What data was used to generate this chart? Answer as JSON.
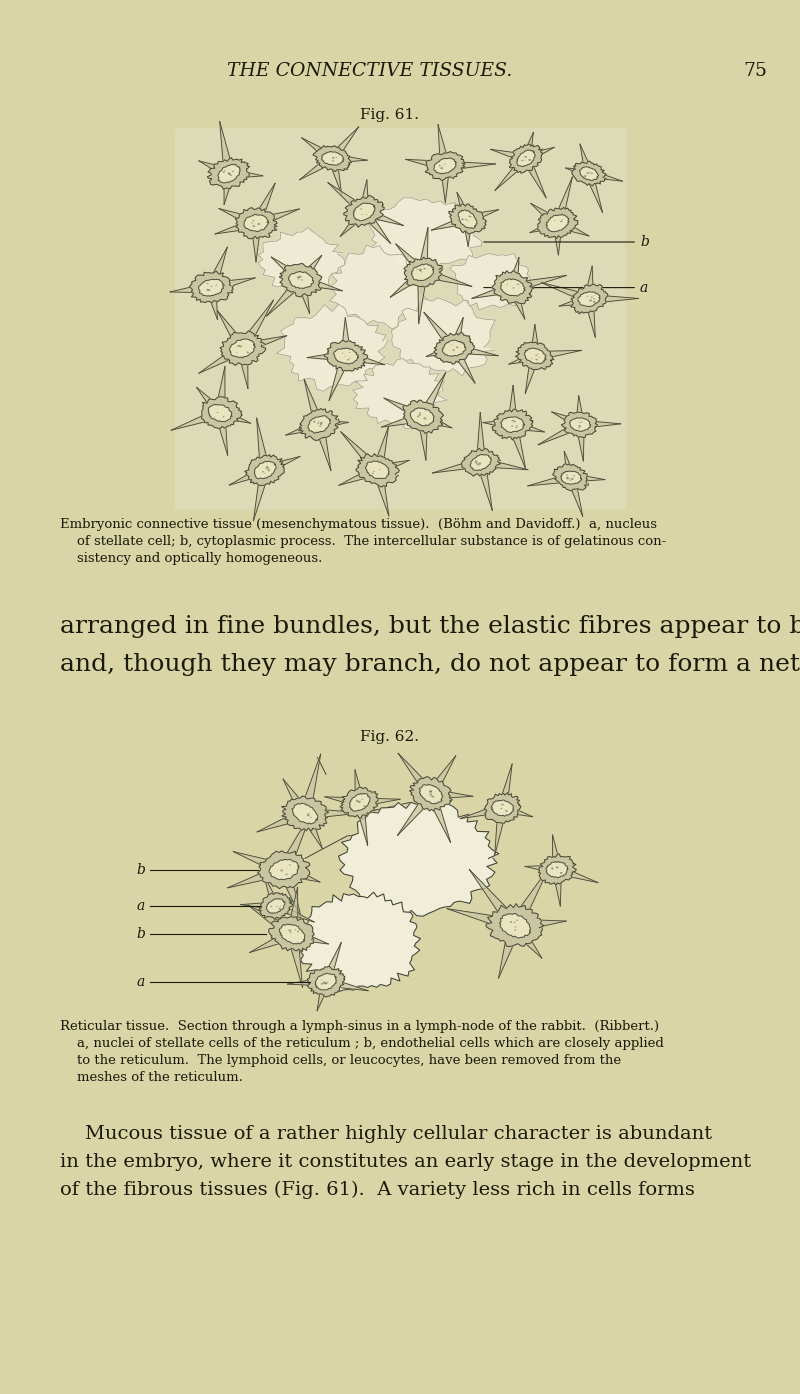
{
  "bg_color": "#d9d5a7",
  "header_text": "THE CONNECTIVE TISSUES.",
  "header_page": "75",
  "fig61_label": "Fig. 61.",
  "fig61_caption_line1": "Embryonic connective tissue (mesenchymatous tissue).  (Böhm and Davidoff.)  a, nucleus",
  "fig61_caption_line2": "    of stellate cell; b, cytoplasmic process.  The intercellular substance is of gelatinous con-",
  "fig61_caption_line3": "    sistency and optically homogeneous.",
  "large_text_line1": "arranged in fine bundles, but the elastic fibres appear to be  isolated,",
  "large_text_line2": "and, though they may branch, do not appear to form a network.",
  "fig62_label": "Fig. 62.",
  "fig62_caption_line1": "Reticular tissue.  Section through a lymph-sinus in a lymph-node of the rabbit.  (Ribbert.)",
  "fig62_caption_line2": "    a, nuclei of stellate cells of the reticulum ; b, endothelial cells which are closely applied",
  "fig62_caption_line3": "    to the reticulum.  The lymphoid cells, or leucocytes, have been removed from the",
  "fig62_caption_line4": "    meshes of the reticulum.",
  "body_line1": "    Mucous tissue of a rather highly cellular character is abundant",
  "body_line2": "in the embryo, where it constitutes an early stage in the development",
  "body_line3": "of the fibrous tissues (Fig. 61).  A variety less rich in cells forms",
  "text_color": "#1a1a0a",
  "cell_color": "#c8c5a0",
  "cell_edge": "#444433",
  "nucleus_fill": "#e8e5c0",
  "nucleus_edge": "#555544",
  "space_fill": "#f0edd8",
  "fig_bg": "#dddab8"
}
